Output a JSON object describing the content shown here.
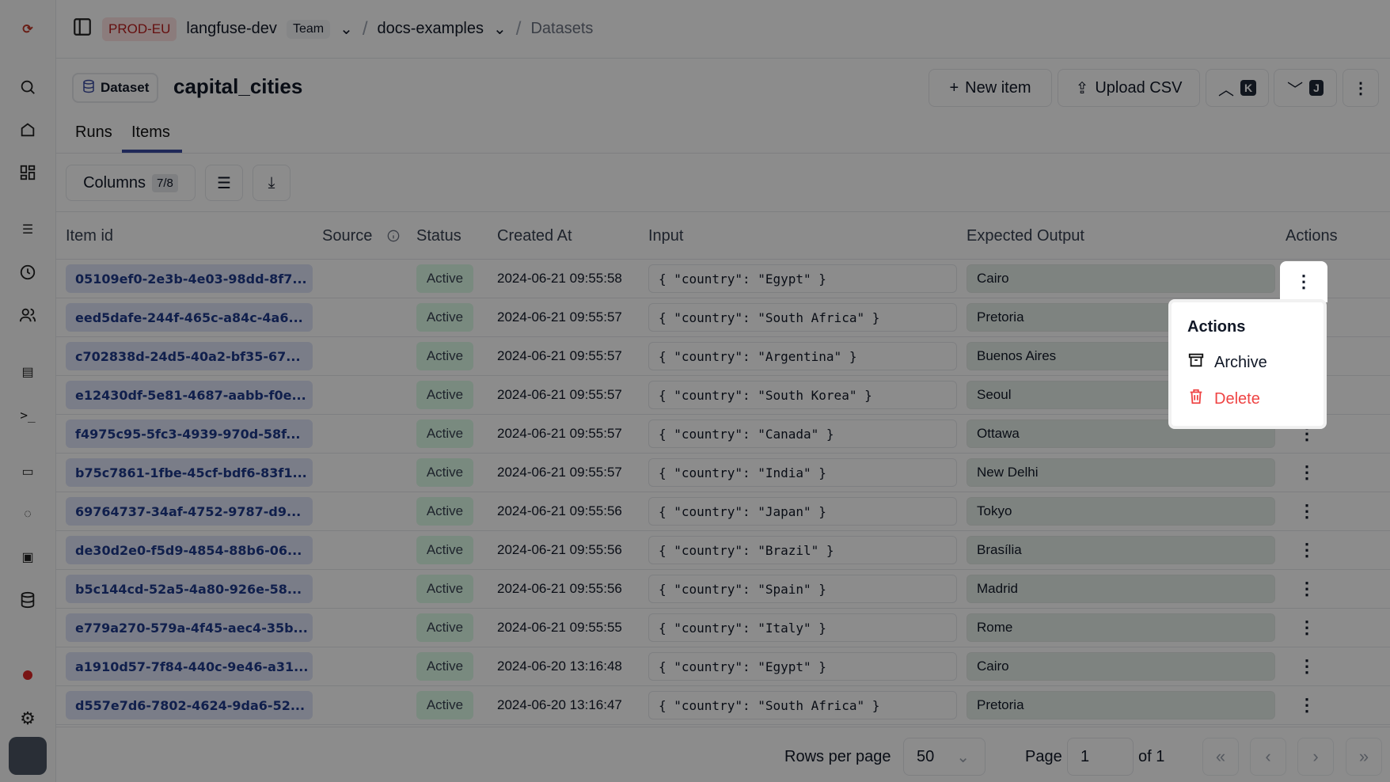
{
  "topbar": {
    "env": "PROD-EU",
    "org": "langfuse-dev",
    "plan": "Team",
    "project": "docs-examples",
    "page": "Datasets"
  },
  "header": {
    "badge": "Dataset",
    "title": "capital_cities",
    "new_item": "New item",
    "upload_csv": "Upload CSV",
    "prev_key": "K",
    "next_key": "J"
  },
  "tabs": [
    {
      "label": "Runs"
    },
    {
      "label": "Items",
      "active": true
    }
  ],
  "toolbar": {
    "columns_label": "Columns",
    "columns_count": "7/8"
  },
  "table": {
    "headers": {
      "item_id": "Item id",
      "source": "Source",
      "status": "Status",
      "created_at": "Created At",
      "input": "Input",
      "expected_output": "Expected Output",
      "actions": "Actions"
    },
    "rows": [
      {
        "id": "05109ef0-2e3b-4e03-98dd-8f7...",
        "status": "Active",
        "created": "2024-06-21 09:55:58",
        "input": "{ \"country\": \"Egypt\" }",
        "expected": "Cairo"
      },
      {
        "id": "eed5dafe-244f-465c-a84c-4a6...",
        "status": "Active",
        "created": "2024-06-21 09:55:57",
        "input": "{ \"country\": \"South Africa\" }",
        "expected": "Pretoria"
      },
      {
        "id": "c702838d-24d5-40a2-bf35-67...",
        "status": "Active",
        "created": "2024-06-21 09:55:57",
        "input": "{ \"country\": \"Argentina\" }",
        "expected": "Buenos Aires"
      },
      {
        "id": "e12430df-5e81-4687-aabb-f0e...",
        "status": "Active",
        "created": "2024-06-21 09:55:57",
        "input": "{ \"country\": \"South Korea\" }",
        "expected": "Seoul"
      },
      {
        "id": "f4975c95-5fc3-4939-970d-58f...",
        "status": "Active",
        "created": "2024-06-21 09:55:57",
        "input": "{ \"country\": \"Canada\" }",
        "expected": "Ottawa"
      },
      {
        "id": "b75c7861-1fbe-45cf-bdf6-83f1...",
        "status": "Active",
        "created": "2024-06-21 09:55:57",
        "input": "{ \"country\": \"India\" }",
        "expected": "New Delhi"
      },
      {
        "id": "69764737-34af-4752-9787-d9...",
        "status": "Active",
        "created": "2024-06-21 09:55:56",
        "input": "{ \"country\": \"Japan\" }",
        "expected": "Tokyo"
      },
      {
        "id": "de30d2e0-f5d9-4854-88b6-06...",
        "status": "Active",
        "created": "2024-06-21 09:55:56",
        "input": "{ \"country\": \"Brazil\" }",
        "expected": "Brasília"
      },
      {
        "id": "b5c144cd-52a5-4a80-926e-58...",
        "status": "Active",
        "created": "2024-06-21 09:55:56",
        "input": "{ \"country\": \"Spain\" }",
        "expected": "Madrid"
      },
      {
        "id": "e779a270-579a-4f45-aec4-35b...",
        "status": "Active",
        "created": "2024-06-21 09:55:55",
        "input": "{ \"country\": \"Italy\" }",
        "expected": "Rome"
      },
      {
        "id": "a1910d57-7f84-440c-9e46-a31...",
        "status": "Active",
        "created": "2024-06-20 13:16:48",
        "input": "{ \"country\": \"Egypt\" }",
        "expected": "Cairo"
      },
      {
        "id": "d557e7d6-7802-4624-9da6-52...",
        "status": "Active",
        "created": "2024-06-20 13:16:47",
        "input": "{ \"country\": \"South Africa\" }",
        "expected": "Pretoria"
      }
    ]
  },
  "menu": {
    "title": "Actions",
    "archive": "Archive",
    "delete": "Delete",
    "delete_color": "#ef4444"
  },
  "footer": {
    "rows_per_page_label": "Rows per page",
    "rows_per_page": "50",
    "page_label": "Page",
    "page": "1",
    "of": "of 1"
  }
}
